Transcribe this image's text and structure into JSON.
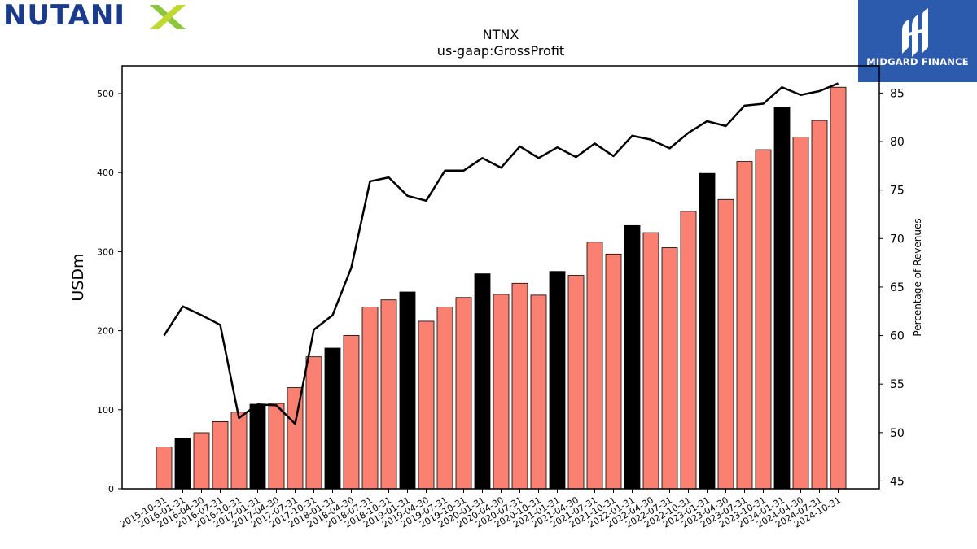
{
  "logos": {
    "left": {
      "text": "NUTANI",
      "icon": "x-mark-icon",
      "colors": {
        "word": "#1a3b8b",
        "x_a": "#8cc63f",
        "x_b": "#c1d82f"
      }
    },
    "right": {
      "text": "MIDGARD FINANCE",
      "icon": "midgard-mark-icon",
      "colors": {
        "bg": "#2c5aad"
      }
    }
  },
  "chart_data": {
    "type": "bar",
    "title": "NTNX",
    "subtitle": "us-gaap:GrossProfit",
    "ylabel": "USDm",
    "y2label": "Percentage of Revenues",
    "ylim": [
      0,
      535
    ],
    "y2lim": [
      44.2,
      87.8
    ],
    "yticks": [
      0,
      100,
      200,
      300,
      400,
      500
    ],
    "y2ticks": [
      45,
      50,
      55,
      60,
      65,
      70,
      75,
      80,
      85
    ],
    "categories": [
      "2015-10-31",
      "2016-01-31",
      "2016-04-30",
      "2016-07-31",
      "2016-10-31",
      "2017-01-31",
      "2017-04-30",
      "2017-07-31",
      "2017-10-31",
      "2018-01-31",
      "2018-04-30",
      "2018-07-31",
      "2018-10-31",
      "2019-01-31",
      "2019-04-30",
      "2019-07-31",
      "2019-10-31",
      "2020-01-31",
      "2020-04-30",
      "2020-07-31",
      "2020-10-31",
      "2021-01-31",
      "2021-04-30",
      "2021-07-31",
      "2021-10-31",
      "2022-01-31",
      "2022-04-30",
      "2022-07-31",
      "2022-10-31",
      "2023-01-31",
      "2023-04-30",
      "2023-07-31",
      "2023-10-31",
      "2024-01-31",
      "2024-04-30",
      "2024-07-31",
      "2024-10-31"
    ],
    "series": [
      {
        "values": [
          53,
          64,
          71,
          85,
          97,
          107,
          108,
          128,
          167,
          178,
          194,
          230,
          239,
          249,
          212,
          230,
          242,
          272,
          246,
          260,
          245,
          275,
          270,
          312,
          297,
          333,
          324,
          305,
          351,
          399,
          366,
          414,
          429,
          483,
          445,
          466,
          508
        ],
        "highlight": [
          false,
          true,
          false,
          false,
          false,
          true,
          false,
          false,
          false,
          true,
          false,
          false,
          false,
          true,
          false,
          false,
          false,
          true,
          false,
          false,
          false,
          true,
          false,
          false,
          false,
          true,
          false,
          false,
          false,
          true,
          false,
          false,
          false,
          true,
          false,
          false,
          false
        ]
      }
    ],
    "line": {
      "axis": "right",
      "values": [
        60.0,
        63.0,
        62.1,
        61.1,
        51.5,
        52.9,
        52.8,
        50.9,
        60.6,
        62.1,
        67.0,
        75.9,
        76.3,
        74.4,
        73.9,
        77.0,
        77.0,
        78.3,
        77.3,
        79.5,
        78.3,
        79.4,
        78.4,
        79.8,
        78.5,
        80.6,
        80.2,
        79.3,
        80.9,
        82.1,
        81.6,
        83.7,
        83.9,
        85.6,
        84.8,
        85.2,
        86.0
      ]
    },
    "colors": {
      "bar": "#fa8072",
      "highlight_bar": "#000000",
      "line": "#000000"
    },
    "grid": false
  }
}
